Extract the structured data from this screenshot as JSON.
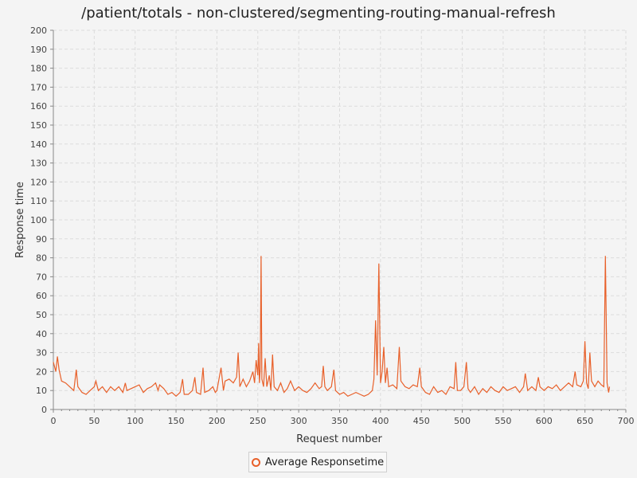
{
  "chart_data": {
    "type": "line",
    "title": "/patient/totals - non-clustered/segmenting-routing-manual-refresh",
    "xlabel": "Request number",
    "ylabel": "Response time",
    "xlim": [
      0,
      700
    ],
    "ylim": [
      0,
      200
    ],
    "x_ticks": [
      0,
      50,
      100,
      150,
      200,
      250,
      300,
      350,
      400,
      450,
      500,
      550,
      600,
      650,
      700
    ],
    "y_ticks": [
      0,
      10,
      20,
      30,
      40,
      50,
      60,
      70,
      80,
      90,
      100,
      110,
      120,
      130,
      140,
      150,
      160,
      170,
      180,
      190,
      200
    ],
    "grid": true,
    "legend_position": "bottom",
    "colors": {
      "series": "#e8602a",
      "grid": "#dcdcdc",
      "axis": "#888888"
    },
    "series": [
      {
        "name": "Average Responsetime",
        "points": [
          [
            0,
            25
          ],
          [
            3,
            20
          ],
          [
            5,
            28
          ],
          [
            7,
            21
          ],
          [
            10,
            15
          ],
          [
            15,
            14
          ],
          [
            20,
            12
          ],
          [
            25,
            10
          ],
          [
            28,
            21
          ],
          [
            30,
            12
          ],
          [
            35,
            9
          ],
          [
            40,
            8
          ],
          [
            45,
            10
          ],
          [
            50,
            12
          ],
          [
            52,
            15
          ],
          [
            55,
            10
          ],
          [
            60,
            12
          ],
          [
            65,
            9
          ],
          [
            70,
            12
          ],
          [
            75,
            10
          ],
          [
            80,
            12
          ],
          [
            85,
            9
          ],
          [
            88,
            14
          ],
          [
            90,
            10
          ],
          [
            95,
            11
          ],
          [
            100,
            12
          ],
          [
            105,
            13
          ],
          [
            110,
            9
          ],
          [
            115,
            11
          ],
          [
            120,
            12
          ],
          [
            125,
            14
          ],
          [
            128,
            10
          ],
          [
            130,
            13
          ],
          [
            135,
            11
          ],
          [
            140,
            8
          ],
          [
            145,
            9
          ],
          [
            150,
            7
          ],
          [
            155,
            9
          ],
          [
            158,
            16
          ],
          [
            160,
            8
          ],
          [
            165,
            8
          ],
          [
            170,
            10
          ],
          [
            173,
            17
          ],
          [
            175,
            9
          ],
          [
            180,
            8
          ],
          [
            183,
            22
          ],
          [
            185,
            9
          ],
          [
            190,
            10
          ],
          [
            195,
            12
          ],
          [
            198,
            9
          ],
          [
            200,
            10
          ],
          [
            205,
            22
          ],
          [
            208,
            10
          ],
          [
            210,
            15
          ],
          [
            215,
            16
          ],
          [
            220,
            14
          ],
          [
            224,
            17
          ],
          [
            226,
            30
          ],
          [
            228,
            12
          ],
          [
            232,
            16
          ],
          [
            236,
            12
          ],
          [
            240,
            15
          ],
          [
            244,
            20
          ],
          [
            246,
            14
          ],
          [
            248,
            26
          ],
          [
            250,
            18
          ],
          [
            251,
            35
          ],
          [
            252,
            14
          ],
          [
            253,
            22
          ],
          [
            254,
            81
          ],
          [
            255,
            16
          ],
          [
            257,
            12
          ],
          [
            259,
            27
          ],
          [
            261,
            12
          ],
          [
            264,
            18
          ],
          [
            266,
            10
          ],
          [
            268,
            29
          ],
          [
            270,
            12
          ],
          [
            274,
            10
          ],
          [
            278,
            14
          ],
          [
            282,
            9
          ],
          [
            286,
            11
          ],
          [
            290,
            15
          ],
          [
            295,
            10
          ],
          [
            300,
            12
          ],
          [
            305,
            10
          ],
          [
            310,
            9
          ],
          [
            315,
            11
          ],
          [
            320,
            14
          ],
          [
            325,
            11
          ],
          [
            328,
            12
          ],
          [
            330,
            23
          ],
          [
            332,
            12
          ],
          [
            335,
            10
          ],
          [
            340,
            12
          ],
          [
            343,
            21
          ],
          [
            345,
            10
          ],
          [
            350,
            8
          ],
          [
            355,
            9
          ],
          [
            360,
            7
          ],
          [
            365,
            8
          ],
          [
            370,
            9
          ],
          [
            375,
            8
          ],
          [
            380,
            7
          ],
          [
            385,
            8
          ],
          [
            390,
            10
          ],
          [
            392,
            16
          ],
          [
            394,
            47
          ],
          [
            396,
            18
          ],
          [
            398,
            77
          ],
          [
            400,
            14
          ],
          [
            402,
            20
          ],
          [
            404,
            33
          ],
          [
            406,
            14
          ],
          [
            408,
            22
          ],
          [
            410,
            12
          ],
          [
            415,
            13
          ],
          [
            420,
            11
          ],
          [
            423,
            33
          ],
          [
            425,
            15
          ],
          [
            430,
            12
          ],
          [
            435,
            11
          ],
          [
            440,
            13
          ],
          [
            445,
            12
          ],
          [
            448,
            22
          ],
          [
            450,
            12
          ],
          [
            455,
            9
          ],
          [
            460,
            8
          ],
          [
            465,
            12
          ],
          [
            470,
            9
          ],
          [
            475,
            10
          ],
          [
            480,
            8
          ],
          [
            485,
            12
          ],
          [
            490,
            11
          ],
          [
            492,
            25
          ],
          [
            494,
            10
          ],
          [
            498,
            10
          ],
          [
            502,
            12
          ],
          [
            505,
            25
          ],
          [
            507,
            11
          ],
          [
            510,
            9
          ],
          [
            515,
            12
          ],
          [
            520,
            8
          ],
          [
            525,
            11
          ],
          [
            530,
            9
          ],
          [
            535,
            12
          ],
          [
            540,
            10
          ],
          [
            545,
            9
          ],
          [
            550,
            12
          ],
          [
            555,
            10
          ],
          [
            560,
            11
          ],
          [
            565,
            12
          ],
          [
            570,
            9
          ],
          [
            575,
            12
          ],
          [
            577,
            19
          ],
          [
            580,
            10
          ],
          [
            585,
            12
          ],
          [
            590,
            10
          ],
          [
            593,
            17
          ],
          [
            595,
            12
          ],
          [
            600,
            10
          ],
          [
            605,
            12
          ],
          [
            610,
            11
          ],
          [
            615,
            13
          ],
          [
            620,
            10
          ],
          [
            625,
            12
          ],
          [
            630,
            14
          ],
          [
            635,
            12
          ],
          [
            638,
            20
          ],
          [
            640,
            13
          ],
          [
            645,
            12
          ],
          [
            648,
            15
          ],
          [
            650,
            36
          ],
          [
            652,
            14
          ],
          [
            654,
            11
          ],
          [
            656,
            30
          ],
          [
            658,
            15
          ],
          [
            662,
            12
          ],
          [
            666,
            15
          ],
          [
            670,
            13
          ],
          [
            673,
            12
          ],
          [
            675,
            81
          ],
          [
            677,
            14
          ],
          [
            679,
            9
          ],
          [
            680,
            12
          ]
        ]
      }
    ]
  }
}
